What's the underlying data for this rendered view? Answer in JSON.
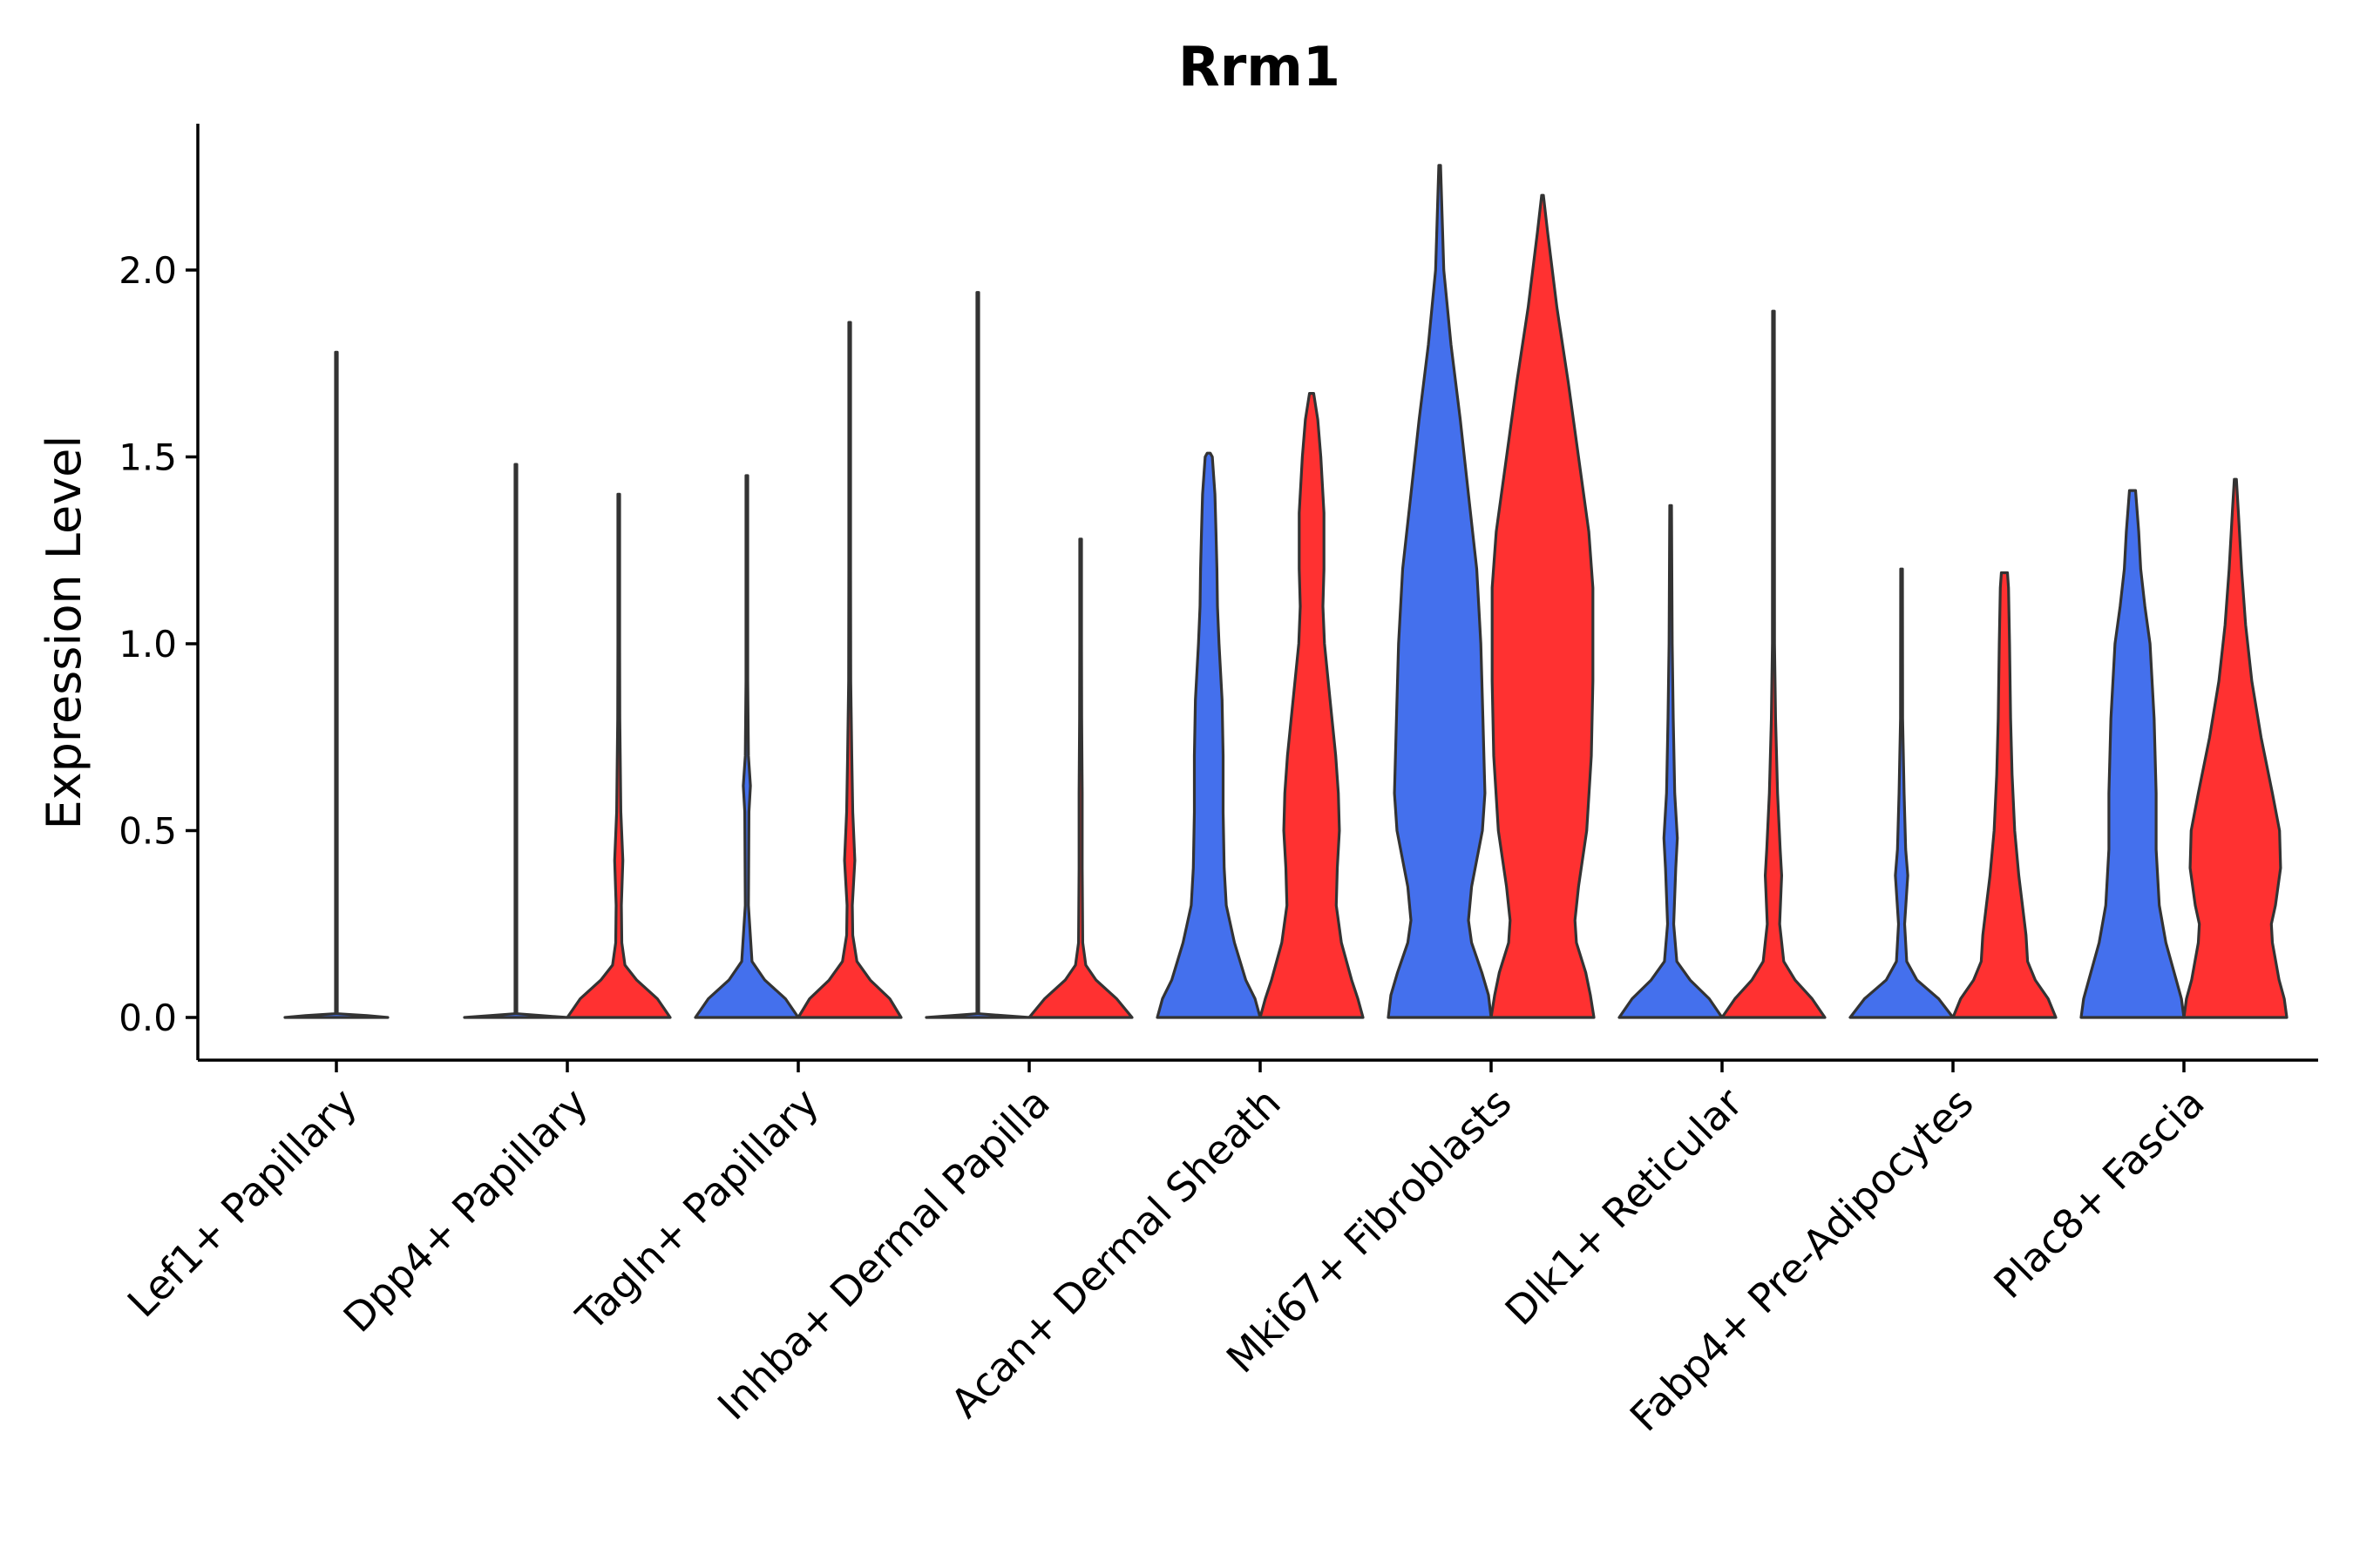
{
  "chart_data": {
    "type": "violin",
    "title": "Rrm1",
    "ylabel": "Expression Level",
    "xlabel": "",
    "ylim": [
      -0.12,
      2.4
    ],
    "yticks": [
      0.0,
      0.5,
      1.0,
      1.5,
      2.0
    ],
    "ytick_labels": [
      "0.0",
      "0.5",
      "1.0",
      "1.5",
      "2.0"
    ],
    "colors": {
      "group1": "#4470ed",
      "group2": "#ff3131",
      "outline": "#333333"
    },
    "categories": [
      "Lef1+ Papillary",
      "Dpp4+ Papillary",
      "Tagln+ Papillary",
      "Inhba+ Dermal Papilla",
      "Acan+ Dermal Sheath",
      "Mki67+ Fibroblasts",
      "Dlk1+ Reticular",
      "Fabp4+ Pre-Adipocytes",
      "Plac8+ Fascia"
    ],
    "violins": [
      {
        "category": "Lef1+ Papillary",
        "group": "group1",
        "slot": "single",
        "max": 1.78,
        "profile": [
          [
            0,
            1
          ],
          [
            0.005,
            0.6
          ],
          [
            0.01,
            0.01
          ],
          [
            0.6,
            0.005
          ],
          [
            1.78,
            0.005
          ]
        ]
      },
      {
        "category": "Dpp4+ Papillary",
        "group": "group1",
        "slot": "left",
        "max": 1.48,
        "profile": [
          [
            0,
            1
          ],
          [
            0.005,
            0.5
          ],
          [
            0.01,
            0.01
          ],
          [
            1.48,
            0.005
          ]
        ]
      },
      {
        "category": "Dpp4+ Papillary",
        "group": "group2",
        "slot": "right",
        "max": 1.4,
        "profile": [
          [
            0,
            1
          ],
          [
            0.05,
            0.75
          ],
          [
            0.1,
            0.35
          ],
          [
            0.14,
            0.12
          ],
          [
            0.2,
            0.06
          ],
          [
            0.3,
            0.05
          ],
          [
            0.42,
            0.08
          ],
          [
            0.55,
            0.04
          ],
          [
            0.8,
            0.02
          ],
          [
            1.0,
            0.012
          ],
          [
            1.4,
            0.005
          ]
        ]
      },
      {
        "category": "Tagln+ Papillary",
        "group": "group1",
        "slot": "left",
        "max": 1.45,
        "profile": [
          [
            0,
            1
          ],
          [
            0.05,
            0.75
          ],
          [
            0.1,
            0.35
          ],
          [
            0.15,
            0.1
          ],
          [
            0.3,
            0.03
          ],
          [
            0.55,
            0.04
          ],
          [
            0.62,
            0.07
          ],
          [
            0.7,
            0.03
          ],
          [
            0.9,
            0.015
          ],
          [
            1.45,
            0.005
          ]
        ]
      },
      {
        "category": "Tagln+ Papillary",
        "group": "group2",
        "slot": "right",
        "max": 1.86,
        "profile": [
          [
            0,
            1
          ],
          [
            0.05,
            0.78
          ],
          [
            0.1,
            0.4
          ],
          [
            0.15,
            0.14
          ],
          [
            0.22,
            0.06
          ],
          [
            0.3,
            0.05
          ],
          [
            0.42,
            0.1
          ],
          [
            0.55,
            0.06
          ],
          [
            0.7,
            0.04
          ],
          [
            0.9,
            0.02
          ],
          [
            1.2,
            0.01
          ],
          [
            1.86,
            0.005
          ]
        ]
      },
      {
        "category": "Inhba+ Dermal Papilla",
        "group": "group1",
        "slot": "left",
        "max": 1.94,
        "profile": [
          [
            0,
            1
          ],
          [
            0.005,
            0.5
          ],
          [
            0.01,
            0.01
          ],
          [
            1.94,
            0.005
          ]
        ]
      },
      {
        "category": "Inhba+ Dermal Papilla",
        "group": "group2",
        "slot": "right",
        "max": 1.28,
        "profile": [
          [
            0,
            1
          ],
          [
            0.05,
            0.7
          ],
          [
            0.1,
            0.3
          ],
          [
            0.14,
            0.1
          ],
          [
            0.2,
            0.04
          ],
          [
            0.4,
            0.03
          ],
          [
            0.6,
            0.03
          ],
          [
            0.8,
            0.02
          ],
          [
            1.0,
            0.01
          ],
          [
            1.28,
            0.005
          ]
        ]
      },
      {
        "category": "Acan+ Dermal Sheath",
        "group": "group1",
        "slot": "left",
        "max": 1.51,
        "profile": [
          [
            0,
            1
          ],
          [
            0.05,
            0.9
          ],
          [
            0.1,
            0.72
          ],
          [
            0.2,
            0.5
          ],
          [
            0.3,
            0.34
          ],
          [
            0.4,
            0.3
          ],
          [
            0.55,
            0.28
          ],
          [
            0.7,
            0.28
          ],
          [
            0.85,
            0.26
          ],
          [
            1.0,
            0.2
          ],
          [
            1.1,
            0.17
          ],
          [
            1.2,
            0.16
          ],
          [
            1.3,
            0.14
          ],
          [
            1.4,
            0.12
          ],
          [
            1.5,
            0.07
          ],
          [
            1.51,
            0.03
          ]
        ]
      },
      {
        "category": "Acan+ Dermal Sheath",
        "group": "group2",
        "slot": "right",
        "max": 1.67,
        "profile": [
          [
            0,
            1
          ],
          [
            0.05,
            0.9
          ],
          [
            0.1,
            0.78
          ],
          [
            0.2,
            0.58
          ],
          [
            0.3,
            0.48
          ],
          [
            0.4,
            0.5
          ],
          [
            0.5,
            0.54
          ],
          [
            0.6,
            0.52
          ],
          [
            0.7,
            0.47
          ],
          [
            0.85,
            0.36
          ],
          [
            1.0,
            0.25
          ],
          [
            1.1,
            0.22
          ],
          [
            1.2,
            0.24
          ],
          [
            1.35,
            0.24
          ],
          [
            1.5,
            0.18
          ],
          [
            1.6,
            0.12
          ],
          [
            1.67,
            0.04
          ]
        ]
      },
      {
        "category": "Mki67+ Fibroblasts",
        "group": "group1",
        "slot": "left",
        "max": 2.28,
        "profile": [
          [
            0,
            1
          ],
          [
            0.06,
            0.95
          ],
          [
            0.12,
            0.82
          ],
          [
            0.2,
            0.62
          ],
          [
            0.26,
            0.56
          ],
          [
            0.35,
            0.62
          ],
          [
            0.5,
            0.83
          ],
          [
            0.6,
            0.88
          ],
          [
            0.8,
            0.84
          ],
          [
            1.0,
            0.8
          ],
          [
            1.2,
            0.72
          ],
          [
            1.4,
            0.56
          ],
          [
            1.6,
            0.4
          ],
          [
            1.8,
            0.22
          ],
          [
            2.0,
            0.08
          ],
          [
            2.28,
            0.005
          ]
        ]
      },
      {
        "category": "Mki67+ Fibroblasts",
        "group": "group2",
        "slot": "right",
        "max": 2.2,
        "profile": [
          [
            0,
            1
          ],
          [
            0.06,
            0.93
          ],
          [
            0.12,
            0.84
          ],
          [
            0.2,
            0.66
          ],
          [
            0.26,
            0.63
          ],
          [
            0.35,
            0.7
          ],
          [
            0.5,
            0.86
          ],
          [
            0.7,
            0.95
          ],
          [
            0.9,
            0.98
          ],
          [
            1.15,
            0.98
          ],
          [
            1.3,
            0.9
          ],
          [
            1.5,
            0.7
          ],
          [
            1.7,
            0.5
          ],
          [
            1.9,
            0.28
          ],
          [
            2.1,
            0.1
          ],
          [
            2.2,
            0.005
          ]
        ]
      },
      {
        "category": "Dlk1+ Reticular",
        "group": "group1",
        "slot": "left",
        "max": 1.37,
        "profile": [
          [
            0,
            1
          ],
          [
            0.05,
            0.75
          ],
          [
            0.1,
            0.38
          ],
          [
            0.15,
            0.12
          ],
          [
            0.25,
            0.06
          ],
          [
            0.4,
            0.1
          ],
          [
            0.48,
            0.13
          ],
          [
            0.6,
            0.08
          ],
          [
            0.8,
            0.05
          ],
          [
            1.0,
            0.03
          ],
          [
            1.37,
            0.005
          ]
        ]
      },
      {
        "category": "Dlk1+ Reticular",
        "group": "group2",
        "slot": "right",
        "max": 1.89,
        "profile": [
          [
            0,
            1
          ],
          [
            0.05,
            0.75
          ],
          [
            0.1,
            0.42
          ],
          [
            0.15,
            0.2
          ],
          [
            0.25,
            0.12
          ],
          [
            0.38,
            0.16
          ],
          [
            0.45,
            0.13
          ],
          [
            0.6,
            0.08
          ],
          [
            0.8,
            0.04
          ],
          [
            1.0,
            0.02
          ],
          [
            1.89,
            0.005
          ]
        ]
      },
      {
        "category": "Fabp4+ Pre-Adipocytes",
        "group": "group1",
        "slot": "left",
        "max": 1.2,
        "profile": [
          [
            0,
            1
          ],
          [
            0.05,
            0.72
          ],
          [
            0.1,
            0.3
          ],
          [
            0.15,
            0.1
          ],
          [
            0.25,
            0.06
          ],
          [
            0.38,
            0.12
          ],
          [
            0.45,
            0.08
          ],
          [
            0.6,
            0.05
          ],
          [
            0.8,
            0.02
          ],
          [
            1.2,
            0.005
          ]
        ]
      },
      {
        "category": "Fabp4+ Pre-Adipocytes",
        "group": "group2",
        "slot": "right",
        "max": 1.19,
        "profile": [
          [
            0,
            1
          ],
          [
            0.05,
            0.85
          ],
          [
            0.1,
            0.6
          ],
          [
            0.15,
            0.45
          ],
          [
            0.22,
            0.42
          ],
          [
            0.3,
            0.35
          ],
          [
            0.38,
            0.28
          ],
          [
            0.5,
            0.2
          ],
          [
            0.65,
            0.15
          ],
          [
            0.8,
            0.12
          ],
          [
            1.0,
            0.1
          ],
          [
            1.15,
            0.08
          ],
          [
            1.19,
            0.06
          ]
        ]
      },
      {
        "category": "Plac8+ Fascia",
        "group": "group1",
        "slot": "left",
        "max": 1.41,
        "profile": [
          [
            0,
            1
          ],
          [
            0.05,
            0.95
          ],
          [
            0.1,
            0.85
          ],
          [
            0.2,
            0.65
          ],
          [
            0.3,
            0.52
          ],
          [
            0.45,
            0.46
          ],
          [
            0.6,
            0.46
          ],
          [
            0.8,
            0.42
          ],
          [
            1.0,
            0.34
          ],
          [
            1.1,
            0.24
          ],
          [
            1.2,
            0.16
          ],
          [
            1.3,
            0.12
          ],
          [
            1.41,
            0.06
          ]
        ]
      },
      {
        "category": "Plac8+ Fascia",
        "group": "group2",
        "slot": "right",
        "max": 1.44,
        "profile": [
          [
            0,
            1
          ],
          [
            0.05,
            0.95
          ],
          [
            0.1,
            0.85
          ],
          [
            0.2,
            0.72
          ],
          [
            0.25,
            0.7
          ],
          [
            0.3,
            0.78
          ],
          [
            0.4,
            0.88
          ],
          [
            0.5,
            0.86
          ],
          [
            0.6,
            0.72
          ],
          [
            0.75,
            0.5
          ],
          [
            0.9,
            0.32
          ],
          [
            1.05,
            0.2
          ],
          [
            1.2,
            0.12
          ],
          [
            1.35,
            0.06
          ],
          [
            1.44,
            0.02
          ]
        ]
      }
    ]
  }
}
